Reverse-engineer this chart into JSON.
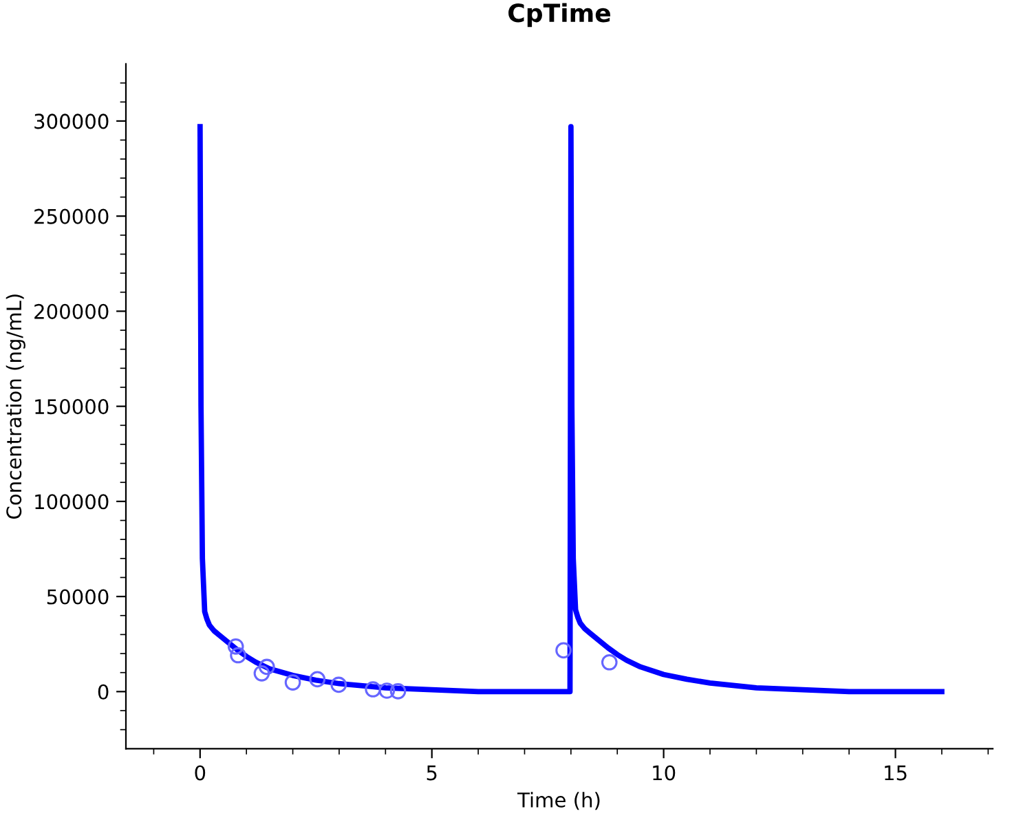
{
  "chart_data": {
    "type": "line",
    "title": "CpTime",
    "xlabel": "Time (h)",
    "ylabel": "Concentration (ng/mL)",
    "xlim": [
      -1.6,
      17.1
    ],
    "ylim": [
      -30000,
      330000
    ],
    "xticks": [
      0,
      5,
      10,
      15,
      {
        "value": -1,
        "label": null
      },
      {
        "value": 1,
        "label": null
      },
      {
        "value": 2,
        "label": null
      },
      {
        "value": 3,
        "label": null
      },
      {
        "value": 4,
        "label": null
      },
      {
        "value": 6,
        "label": null
      },
      {
        "value": 7,
        "label": null
      },
      {
        "value": 8,
        "label": null
      },
      {
        "value": 9,
        "label": null
      },
      {
        "value": 11,
        "label": null
      },
      {
        "value": 12,
        "label": null
      },
      {
        "value": 13,
        "label": null
      },
      {
        "value": 14,
        "label": null
      },
      {
        "value": 16,
        "label": null
      },
      {
        "value": 17,
        "label": null
      }
    ],
    "yticks": [
      0,
      50000,
      100000,
      150000,
      200000,
      250000,
      300000,
      {
        "value": -20000,
        "label": null
      },
      {
        "value": -10000,
        "label": null
      },
      {
        "value": 10000,
        "label": null
      },
      {
        "value": 20000,
        "label": null
      },
      {
        "value": 30000,
        "label": null
      },
      {
        "value": 40000,
        "label": null
      },
      {
        "value": 60000,
        "label": null
      },
      {
        "value": 70000,
        "label": null
      },
      {
        "value": 80000,
        "label": null
      },
      {
        "value": 90000,
        "label": null
      },
      {
        "value": 110000,
        "label": null
      },
      {
        "value": 120000,
        "label": null
      },
      {
        "value": 130000,
        "label": null
      },
      {
        "value": 140000,
        "label": null
      },
      {
        "value": 160000,
        "label": null
      },
      {
        "value": 170000,
        "label": null
      },
      {
        "value": 180000,
        "label": null
      },
      {
        "value": 190000,
        "label": null
      },
      {
        "value": 210000,
        "label": null
      },
      {
        "value": 220000,
        "label": null
      },
      {
        "value": 230000,
        "label": null
      },
      {
        "value": 240000,
        "label": null
      },
      {
        "value": 260000,
        "label": null
      },
      {
        "value": 270000,
        "label": null
      },
      {
        "value": 280000,
        "label": null
      },
      {
        "value": 290000,
        "label": null
      },
      {
        "value": 310000,
        "label": null
      },
      {
        "value": 320000,
        "label": null
      }
    ],
    "grid": false,
    "legend": false,
    "series": [
      {
        "color": "#0000ff",
        "marker": "none",
        "line_style": "solid",
        "x": [
          0,
          0.02,
          0.05,
          0.1,
          0.15,
          0.2,
          0.3,
          0.4,
          0.6,
          0.8,
          1,
          1.2,
          1.5,
          2,
          2.5,
          3,
          4,
          5,
          6,
          7,
          7.98,
          8,
          8.02,
          8.05,
          8.1,
          8.15,
          8.2,
          8.3,
          8.4,
          8.6,
          8.8,
          9,
          9.2,
          9.5,
          10,
          10.5,
          11,
          12,
          13,
          14,
          15,
          16
        ],
        "values": [
          297000,
          150000,
          70000,
          42000,
          38000,
          35000,
          32000,
          30000,
          26000,
          22000,
          18500,
          15500,
          12000,
          8500,
          6000,
          4200,
          2000,
          1000,
          0,
          0,
          0,
          297000,
          150000,
          70000,
          43000,
          39000,
          36000,
          33000,
          31000,
          27000,
          23000,
          19500,
          16500,
          13000,
          9000,
          6500,
          4500,
          2000,
          1000,
          0,
          0,
          0
        ]
      },
      {
        "type": "scatter",
        "color": "#6666ff",
        "marker": "circle",
        "x": [
          0.77,
          0.82,
          1.33,
          1.44,
          2.0,
          2.53,
          2.99,
          3.73,
          4.03,
          4.27,
          7.84,
          8.83
        ],
        "values": [
          23700,
          19100,
          9600,
          13000,
          4800,
          6500,
          3600,
          1200,
          500,
          200,
          21700,
          15400
        ]
      }
    ]
  }
}
